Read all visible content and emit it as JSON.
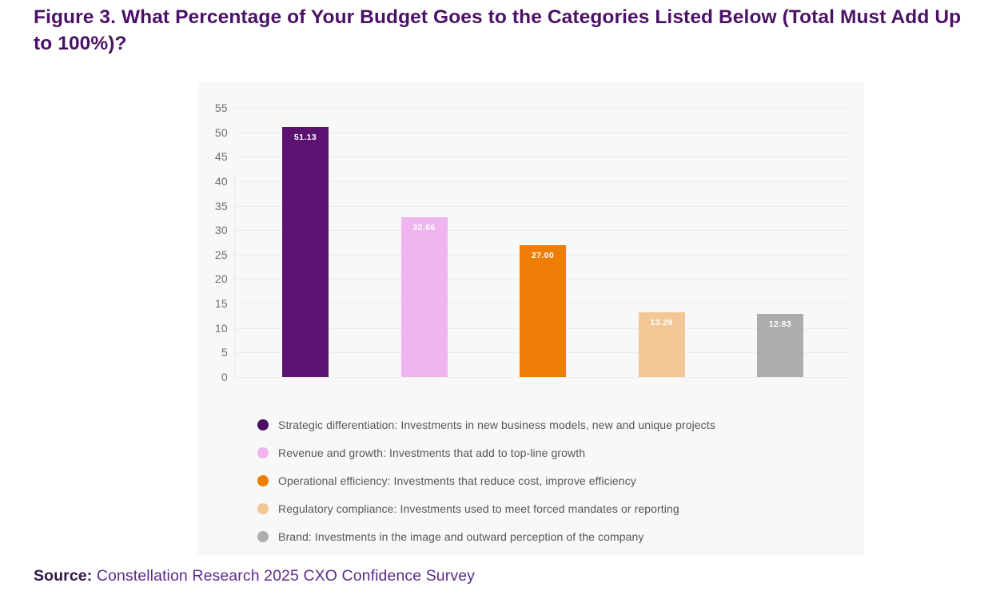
{
  "title": "Figure 3. What Percentage of Your Budget Goes to the Categories Listed Below (Total Must Add Up to 100%)?",
  "source": {
    "label": "Source:",
    "text": " Constellation Research 2025 CXO Confidence Survey"
  },
  "colors": {
    "title_purple": "#4b1166",
    "panel_background": "#f8f8f8",
    "gridline": "#ececec",
    "axis_tick_text": "#6e6e6e",
    "legend_text": "#55565a",
    "bar_value_text": "#ffffff",
    "source_label": "#2e1847",
    "source_text": "#5c2b8d"
  },
  "chart_data": {
    "type": "bar",
    "title": "Figure 3. What Percentage of Your Budget Goes to the Categories Listed Below (Total Must Add Up to 100%)?",
    "xlabel": "",
    "ylabel": "",
    "ylim": [
      0,
      55
    ],
    "y_ticks": [
      0,
      5,
      10,
      15,
      20,
      25,
      30,
      35,
      40,
      45,
      50,
      55
    ],
    "grid": true,
    "legend_position": "bottom",
    "categories": [
      "Strategic differentiation",
      "Revenue and growth",
      "Operational efficiency",
      "Regulatory compliance",
      "Brand"
    ],
    "values": [
      51.13,
      32.66,
      27.0,
      13.29,
      12.83
    ],
    "value_labels": [
      "51.13",
      "32.66",
      "27.00",
      "13.29",
      "12.83"
    ],
    "bar_colors": [
      "#5c1270",
      "#eeb5f1",
      "#ee7d05",
      "#f3c795",
      "#adadab"
    ],
    "legend": [
      {
        "label": "Strategic differentiation: Investments in new business models, new and unique projects",
        "color": "#4c0d63"
      },
      {
        "label": "Revenue and growth: Investments that add to top-line growth",
        "color": "#eeb5f1"
      },
      {
        "label": "Operational efficiency: Investments that reduce cost, improve efficiency",
        "color": "#ee7d05"
      },
      {
        "label": "Regulatory compliance: Investments used to meet forced mandates or reporting",
        "color": "#f3c795"
      },
      {
        "label": "Brand: Investments in the image and outward perception of the company",
        "color": "#adadab"
      }
    ]
  }
}
